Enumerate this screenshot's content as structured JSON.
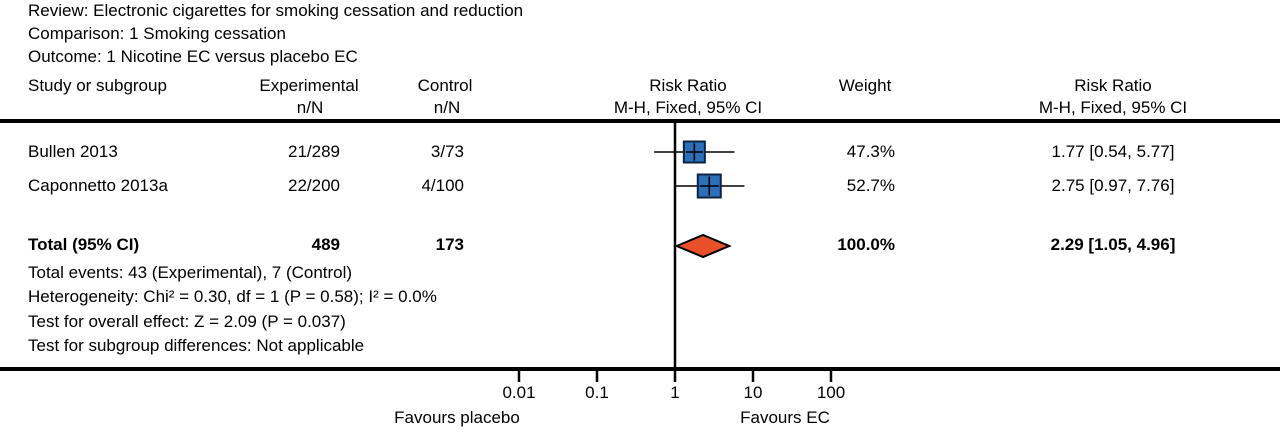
{
  "meta": {
    "review": "Review: Electronic cigarettes for smoking cessation and reduction",
    "comparison": "Comparison: 1 Smoking cessation",
    "outcome": "Outcome: 1 Nicotine EC versus placebo EC"
  },
  "columns": {
    "study": "Study or subgroup",
    "experimental": "Experimental",
    "control": "Control",
    "nN_experimental": "n/N",
    "nN_control": "n/N",
    "risk_ratio_plot": "Risk Ratio",
    "mh_fixed_plot": "M-H, Fixed, 95% CI",
    "weight": "Weight",
    "risk_ratio_text": "Risk Ratio",
    "mh_fixed_text": "M-H, Fixed, 95% CI"
  },
  "rows": [
    {
      "study": "Bullen 2013",
      "experimental": "21/289",
      "control": "3/73",
      "weight": "47.3%",
      "rr_ci": "1.77 [0.54, 5.77]"
    },
    {
      "study": "Caponnetto 2013a",
      "experimental": "22/200",
      "control": "4/100",
      "weight": "52.7%",
      "rr_ci": "2.75 [0.97, 7.76]"
    }
  ],
  "total": {
    "label": "Total (95% CI)",
    "experimental": "489",
    "control": "173",
    "weight": "100.0%",
    "rr_ci": "2.29 [1.05, 4.96]"
  },
  "footnotes": [
    "Total events: 43 (Experimental), 7 (Control)",
    "Heterogeneity: Chi² = 0.30, df = 1 (P = 0.58); I² = 0.0%",
    "Test for overall effect: Z = 2.09 (P = 0.037)",
    "Test for subgroup differences: Not applicable"
  ],
  "axis": {
    "favours_left": "Favours placebo",
    "favours_right": "Favours EC"
  },
  "chart_data": {
    "type": "forest",
    "x_scale": "log10",
    "x_ticks": [
      0.01,
      0.1,
      1,
      10,
      100
    ],
    "x_tick_labels": [
      "0.01",
      "0.1",
      "1",
      "10",
      "100"
    ],
    "null_line": 1,
    "effect_measure": "Risk Ratio (M-H, Fixed, 95% CI)",
    "studies": [
      {
        "name": "Bullen 2013",
        "events_exp": 21,
        "n_exp": 289,
        "events_ctrl": 3,
        "n_ctrl": 73,
        "rr": 1.77,
        "ci_low": 0.54,
        "ci_high": 5.77,
        "weight_pct": 47.3
      },
      {
        "name": "Caponnetto 2013a",
        "events_exp": 22,
        "n_exp": 200,
        "events_ctrl": 4,
        "n_ctrl": 100,
        "rr": 2.75,
        "ci_low": 0.97,
        "ci_high": 7.76,
        "weight_pct": 52.7
      }
    ],
    "total": {
      "n_exp": 489,
      "n_ctrl": 173,
      "events_exp": 43,
      "events_ctrl": 7,
      "rr": 2.29,
      "ci_low": 1.05,
      "ci_high": 4.96,
      "weight_pct": 100.0
    },
    "heterogeneity": {
      "chi2": 0.3,
      "df": 1,
      "p": 0.58,
      "i2_pct": 0.0
    },
    "overall_effect": {
      "z": 2.09,
      "p": 0.037
    },
    "marker_color": "#2b70b8",
    "marker_border_color": "#0d2440",
    "diamond_color": "#e8502a",
    "line_color": "#000000"
  }
}
